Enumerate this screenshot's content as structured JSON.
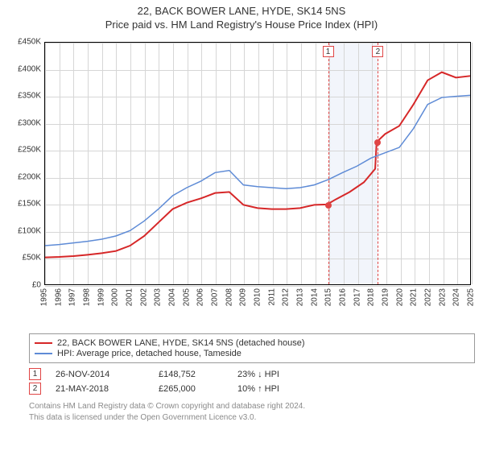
{
  "title": {
    "main": "22, BACK BOWER LANE, HYDE, SK14 5NS",
    "sub": "Price paid vs. HM Land Registry's House Price Index (HPI)"
  },
  "chart": {
    "type": "line",
    "background_color": "#ffffff",
    "grid_color": "#d6d6d6",
    "border_color": "#000000",
    "title_fontsize": 13,
    "axis_fontsize": 10,
    "ylim": [
      0,
      450000
    ],
    "ytick_step": 50000,
    "yticks": [
      "£0",
      "£50K",
      "£100K",
      "£150K",
      "£200K",
      "£250K",
      "£300K",
      "£350K",
      "£400K",
      "£450K"
    ],
    "xlim": [
      1995,
      2025
    ],
    "xticks": [
      1995,
      1996,
      1997,
      1998,
      1999,
      2000,
      2001,
      2002,
      2003,
      2004,
      2005,
      2006,
      2007,
      2008,
      2009,
      2010,
      2011,
      2012,
      2013,
      2014,
      2015,
      2016,
      2017,
      2018,
      2019,
      2020,
      2021,
      2022,
      2023,
      2024,
      2025
    ],
    "shade_band": {
      "start": 2014.9,
      "end": 2018.4,
      "color": "#f2f5fb"
    },
    "marker_dash_color": "#e04545",
    "series": [
      {
        "name": "price_paid",
        "label": "22, BACK BOWER LANE, HYDE, SK14 5NS (detached house)",
        "color": "#d62728",
        "line_width": 2,
        "data": [
          [
            1995,
            50000
          ],
          [
            1996,
            51000
          ],
          [
            1997,
            52500
          ],
          [
            1998,
            55000
          ],
          [
            1999,
            58000
          ],
          [
            2000,
            62000
          ],
          [
            2001,
            72000
          ],
          [
            2002,
            90000
          ],
          [
            2003,
            115000
          ],
          [
            2004,
            140000
          ],
          [
            2005,
            152000
          ],
          [
            2006,
            160000
          ],
          [
            2007,
            170000
          ],
          [
            2008,
            172000
          ],
          [
            2009,
            148000
          ],
          [
            2010,
            142000
          ],
          [
            2011,
            140000
          ],
          [
            2012,
            140000
          ],
          [
            2013,
            142000
          ],
          [
            2014,
            148000
          ],
          [
            2014.9,
            148752
          ],
          [
            2015.5,
            158000
          ],
          [
            2016.5,
            172000
          ],
          [
            2017.5,
            190000
          ],
          [
            2018.3,
            215000
          ],
          [
            2018.4,
            265000
          ],
          [
            2019,
            280000
          ],
          [
            2020,
            295000
          ],
          [
            2021,
            335000
          ],
          [
            2022,
            380000
          ],
          [
            2023,
            395000
          ],
          [
            2024,
            385000
          ],
          [
            2025,
            388000
          ]
        ]
      },
      {
        "name": "hpi",
        "label": "HPI: Average price, detached house, Tameside",
        "color": "#5e8bd6",
        "line_width": 1.5,
        "data": [
          [
            1995,
            72000
          ],
          [
            1996,
            74000
          ],
          [
            1997,
            77000
          ],
          [
            1998,
            80000
          ],
          [
            1999,
            84000
          ],
          [
            2000,
            90000
          ],
          [
            2001,
            100000
          ],
          [
            2002,
            118000
          ],
          [
            2003,
            140000
          ],
          [
            2004,
            165000
          ],
          [
            2005,
            180000
          ],
          [
            2006,
            192000
          ],
          [
            2007,
            208000
          ],
          [
            2008,
            212000
          ],
          [
            2009,
            185000
          ],
          [
            2010,
            182000
          ],
          [
            2011,
            180000
          ],
          [
            2012,
            178000
          ],
          [
            2013,
            180000
          ],
          [
            2014,
            185000
          ],
          [
            2015,
            195000
          ],
          [
            2016,
            208000
          ],
          [
            2017,
            220000
          ],
          [
            2018,
            235000
          ],
          [
            2019,
            245000
          ],
          [
            2020,
            255000
          ],
          [
            2021,
            290000
          ],
          [
            2022,
            335000
          ],
          [
            2023,
            348000
          ],
          [
            2024,
            350000
          ],
          [
            2025,
            352000
          ]
        ]
      }
    ],
    "markers": [
      {
        "id": "1",
        "x": 2014.9,
        "y": 148752
      },
      {
        "id": "2",
        "x": 2018.4,
        "y": 265000
      }
    ]
  },
  "legend": {
    "items": [
      {
        "color": "#d62728",
        "text": "22, BACK BOWER LANE, HYDE, SK14 5NS (detached house)"
      },
      {
        "color": "#5e8bd6",
        "text": "HPI: Average price, detached house, Tameside"
      }
    ]
  },
  "events": [
    {
      "id": "1",
      "date": "26-NOV-2014",
      "price": "£148,752",
      "delta": "23% ↓ HPI"
    },
    {
      "id": "2",
      "date": "21-MAY-2018",
      "price": "£265,000",
      "delta": "10% ↑ HPI"
    }
  ],
  "footer": {
    "line1": "Contains HM Land Registry data © Crown copyright and database right 2024.",
    "line2": "This data is licensed under the Open Government Licence v3.0."
  }
}
